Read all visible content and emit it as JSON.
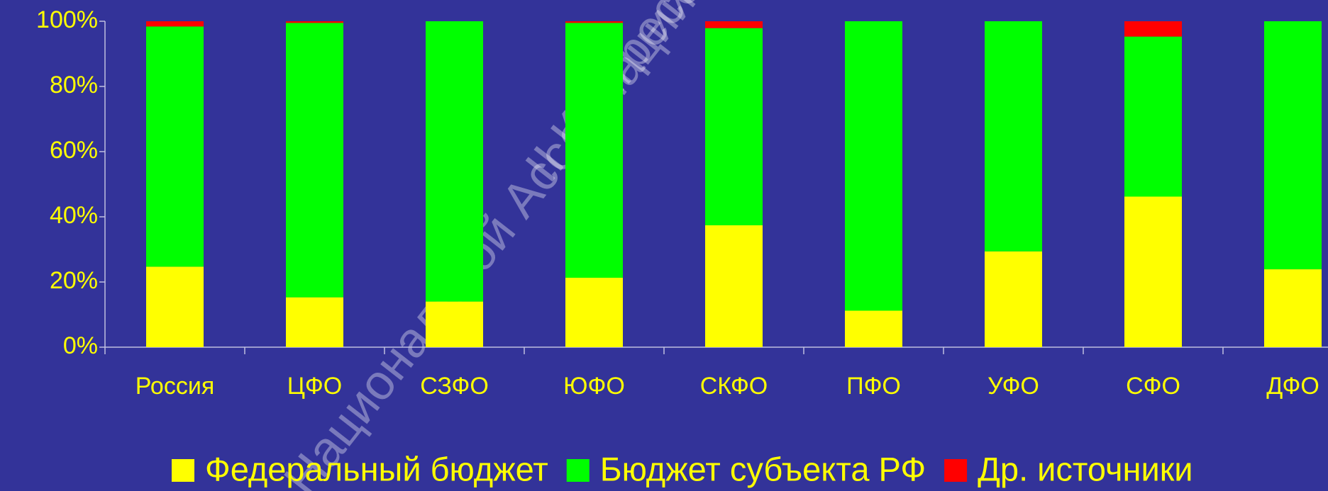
{
  "chart_data": {
    "type": "stacked_bar",
    "categories": [
      "Россия",
      "ЦФО",
      "СЗФО",
      "ЮФО",
      "СКФО",
      "ПФО",
      "УФО",
      "СФО",
      "ДФО"
    ],
    "series": [
      {
        "name": "Федеральный бюджет",
        "color": "#ffff00",
        "values": [
          24.7,
          15.3,
          14,
          21.3,
          37.4,
          11.2,
          29.4,
          46.2,
          23.9
        ]
      },
      {
        "name": "Бюджет субъекта РФ",
        "color": "#00ff00",
        "values": [
          73.7,
          84.2,
          86,
          78.2,
          60.5,
          88.8,
          70.6,
          49.1,
          76.1
        ]
      },
      {
        "name": "Др. источники",
        "color": "#ff0000",
        "values": [
          1.6,
          0.5,
          0,
          0.5,
          2.1,
          0,
          0,
          4.7,
          0
        ]
      }
    ],
    "ylim": [
      0,
      100
    ],
    "yticks": [
      {
        "value": 0,
        "label": "0%"
      },
      {
        "value": 20,
        "label": "20%"
      },
      {
        "value": 40,
        "label": "40%"
      },
      {
        "value": 60,
        "label": "60%"
      },
      {
        "value": 80,
        "label": "80%"
      },
      {
        "value": 100,
        "label": "100%"
      }
    ],
    "legend": "bottom",
    "watermark": [
      "II Конгресс",
      "Национальной Ассоциации"
    ]
  }
}
